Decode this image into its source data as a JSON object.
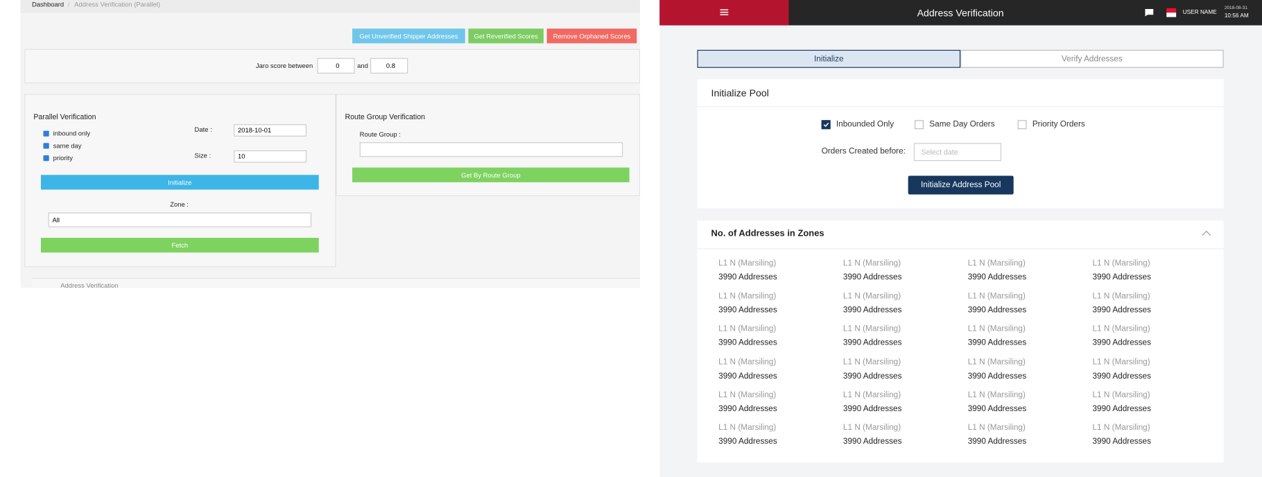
{
  "left": {
    "breadcrumb": [
      "Dashboard",
      "Address Verification (Parallel)"
    ],
    "buttons": [
      "Get Unverified Shipper Addresses",
      "Get Reverified Scores",
      "Remove Orphaned Scores"
    ],
    "jaro": {
      "label": "Jaro score between",
      "from": "0",
      "and": "and",
      "to": "0.8"
    },
    "parallel": {
      "title": "Parallel Verification",
      "checks": [
        "inbound only",
        "same day",
        "priority"
      ],
      "date_label": "Date :",
      "date": "2018-10-01",
      "size_label": "Size :",
      "size": "10",
      "initialize": "Initialize",
      "zone_label": "Zone :",
      "zone": "All",
      "fetch": "Fetch"
    },
    "route": {
      "title": "Route Group Verification",
      "label": "Route Group :",
      "button": "Get By Route Group"
    },
    "footer": "Address Verification"
  },
  "right": {
    "header": {
      "title": "Address Verification",
      "user": "USER NAME",
      "date": "2018-08-31",
      "time": "10:56 AM"
    },
    "tabs": [
      "Initialize",
      "Verify Addresses"
    ],
    "pool": {
      "title": "Initialize Pool",
      "checks": [
        "Inbounded Only",
        "Same Day Orders",
        "Priority Orders"
      ],
      "orders_label": "Orders Created before:",
      "placeholder": "Select date",
      "button": "Initialize Address Pool"
    },
    "zones": {
      "title": "No. of Addresses in Zones",
      "items": [
        {
          "name": "L1 N (Marsiling)",
          "count": "3990 Addresses"
        },
        {
          "name": "L1 N (Marsiling)",
          "count": "3990 Addresses"
        },
        {
          "name": "L1 N (Marsiling)",
          "count": "3990 Addresses"
        },
        {
          "name": "L1 N (Marsiling)",
          "count": "3990 Addresses"
        },
        {
          "name": "L1 N (Marsiling)",
          "count": "3990 Addresses"
        },
        {
          "name": "L1 N (Marsiling)",
          "count": "3990 Addresses"
        },
        {
          "name": "L1 N (Marsiling)",
          "count": "3990 Addresses"
        },
        {
          "name": "L1 N (Marsiling)",
          "count": "3990 Addresses"
        },
        {
          "name": "L1 N (Marsiling)",
          "count": "3990 Addresses"
        },
        {
          "name": "L1 N (Marsiling)",
          "count": "3990 Addresses"
        },
        {
          "name": "L1 N (Marsiling)",
          "count": "3990 Addresses"
        },
        {
          "name": "L1 N (Marsiling)",
          "count": "3990 Addresses"
        },
        {
          "name": "L1 N (Marsiling)",
          "count": "3990 Addresses"
        },
        {
          "name": "L1 N (Marsiling)",
          "count": "3990 Addresses"
        },
        {
          "name": "L1 N (Marsiling)",
          "count": "3990 Addresses"
        },
        {
          "name": "L1 N (Marsiling)",
          "count": "3990 Addresses"
        },
        {
          "name": "L1 N (Marsiling)",
          "count": "3990 Addresses"
        },
        {
          "name": "L1 N (Marsiling)",
          "count": "3990 Addresses"
        },
        {
          "name": "L1 N (Marsiling)",
          "count": "3990 Addresses"
        },
        {
          "name": "L1 N (Marsiling)",
          "count": "3990 Addresses"
        },
        {
          "name": "L1 N (Marsiling)",
          "count": "3990 Addresses"
        },
        {
          "name": "L1 N (Marsiling)",
          "count": "3990 Addresses"
        },
        {
          "name": "L1 N (Marsiling)",
          "count": "3990 Addresses"
        },
        {
          "name": "L1 N (Marsiling)",
          "count": "3990 Addresses"
        }
      ]
    }
  }
}
